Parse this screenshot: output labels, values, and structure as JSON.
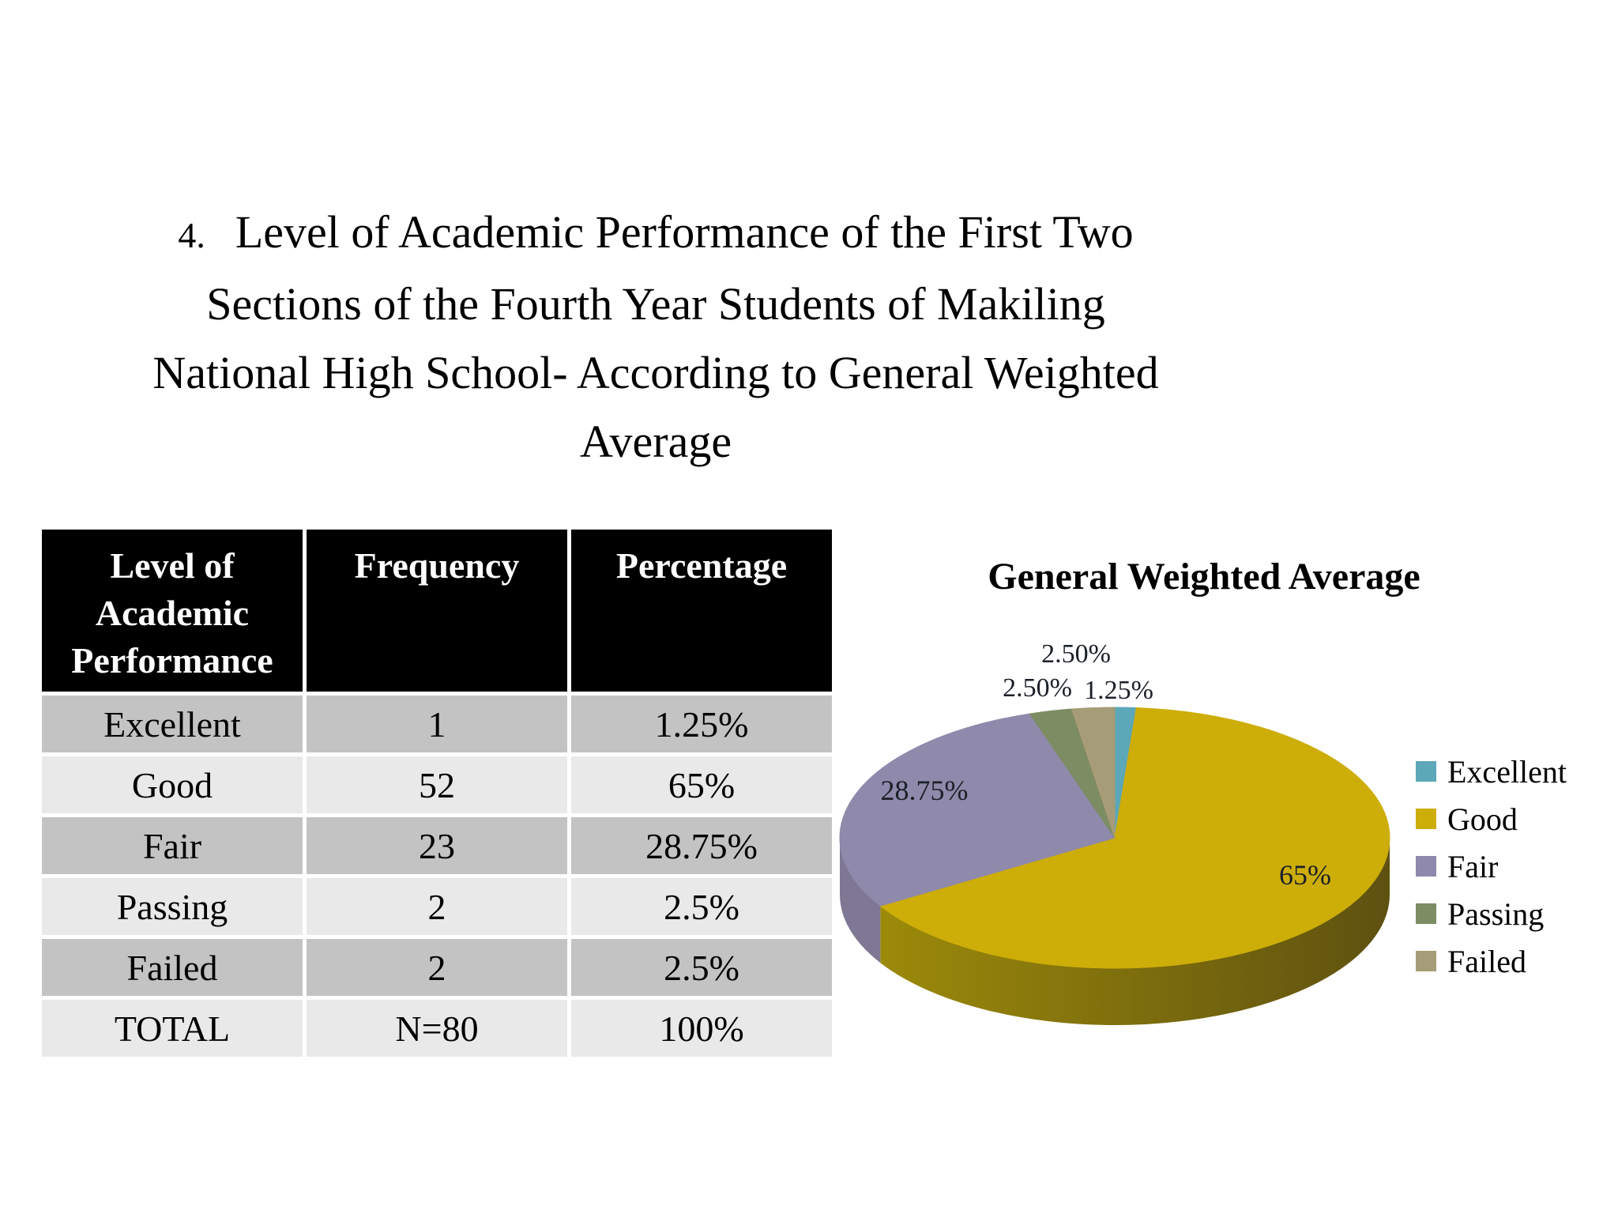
{
  "title": {
    "number": "4.",
    "lines": [
      "Level of Academic Performance of the First Two",
      "Sections of the Fourth Year Students of Makiling",
      "National High School- According to General Weighted",
      "Average"
    ]
  },
  "table": {
    "columns": [
      "Level of Academic Performance",
      "Frequency",
      "Percentage"
    ],
    "rows": [
      [
        "Excellent",
        "1",
        "1.25%"
      ],
      [
        "Good",
        "52",
        "65%"
      ],
      [
        "Fair",
        "23",
        "28.75%"
      ],
      [
        "Passing",
        "2",
        "2.5%"
      ],
      [
        "Failed",
        "2",
        "2.5%"
      ],
      [
        "TOTAL",
        "N=80",
        "100%"
      ]
    ]
  },
  "chart_data": {
    "type": "pie",
    "title": "General Weighted Average",
    "effect": "3d",
    "start_angle": 0,
    "legend_position": "right",
    "categories": [
      "Excellent",
      "Good",
      "Fair",
      "Passing",
      "Failed"
    ],
    "values": [
      1.25,
      65,
      28.75,
      2.5,
      2.5
    ],
    "labels": [
      "1.25%",
      "65%",
      "28.75%",
      "2.50%",
      "2.50%"
    ],
    "colors": [
      "#5CA7B8",
      "#CDAD08",
      "#8F89AB",
      "#7C8C63",
      "#A69C77"
    ],
    "side_colors": [
      "#4E8EA0",
      [
        "#9C8A0A",
        "#5E5110"
      ],
      "#7E7894",
      "#5F7048",
      "#8A805C"
    ],
    "total_label": "100%",
    "n_label": "N=80"
  }
}
